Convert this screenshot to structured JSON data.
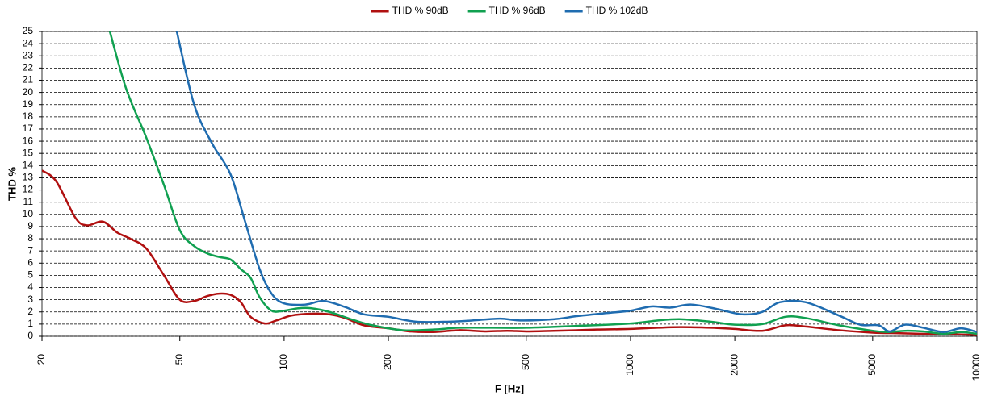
{
  "chart_data": {
    "type": "line",
    "x_label": "F [Hz]",
    "y_label": "THD %",
    "xlim": [
      20,
      10000
    ],
    "ylim": [
      0,
      25
    ],
    "log_x": true,
    "grid": true,
    "legend": "top",
    "xticks": [
      20,
      50,
      100,
      200,
      500,
      1000,
      2000,
      5000,
      10000
    ],
    "yticks": [
      0,
      1,
      2,
      3,
      4,
      5,
      6,
      7,
      8,
      9,
      10,
      11,
      12,
      13,
      14,
      15,
      16,
      17,
      18,
      19,
      20,
      21,
      22,
      23,
      24,
      25
    ],
    "series": [
      {
        "name": "THD % 90dB",
        "color": "#b01010",
        "x": [
          20,
          22,
          25,
          27,
          30,
          33,
          36,
          40,
          45,
          50,
          55,
          60,
          65,
          70,
          75,
          80,
          88,
          95,
          105,
          120,
          135,
          150,
          170,
          200,
          230,
          270,
          320,
          380,
          440,
          500,
          600,
          700,
          800,
          1000,
          1200,
          1400,
          1700,
          2000,
          2400,
          2800,
          3200,
          4000,
          5000,
          6000,
          7000,
          8000,
          9000,
          10000
        ],
        "values": [
          13.6,
          12.7,
          9.7,
          9.1,
          9.4,
          8.5,
          8.0,
          7.2,
          5.0,
          3.0,
          2.9,
          3.3,
          3.5,
          3.4,
          2.8,
          1.6,
          1.05,
          1.3,
          1.7,
          1.85,
          1.8,
          1.5,
          0.9,
          0.65,
          0.4,
          0.35,
          0.5,
          0.4,
          0.45,
          0.4,
          0.45,
          0.5,
          0.55,
          0.6,
          0.7,
          0.75,
          0.7,
          0.6,
          0.45,
          0.9,
          0.8,
          0.5,
          0.3,
          0.25,
          0.2,
          0.15,
          0.15,
          0.1
        ]
      },
      {
        "name": "THD % 96dB",
        "color": "#10a050",
        "x": [
          31.4,
          35,
          40,
          45,
          50,
          55,
          60,
          65,
          70,
          75,
          80,
          85,
          92,
          100,
          110,
          120,
          135,
          160,
          180,
          220,
          270,
          320,
          400,
          500,
          700,
          1000,
          1200,
          1400,
          1700,
          2000,
          2400,
          2800,
          3200,
          4000,
          5000,
          5500,
          6200,
          7000,
          8000,
          9000,
          10000
        ],
        "values": [
          25,
          20.3,
          16.3,
          12.4,
          8.7,
          7.4,
          6.8,
          6.5,
          6.3,
          5.5,
          4.8,
          3.2,
          2.1,
          2.1,
          2.3,
          2.3,
          2.0,
          1.3,
          0.9,
          0.5,
          0.55,
          0.7,
          0.7,
          0.7,
          0.85,
          1.05,
          1.3,
          1.4,
          1.2,
          0.95,
          1.0,
          1.6,
          1.5,
          0.9,
          0.45,
          0.35,
          0.45,
          0.4,
          0.2,
          0.35,
          0.2
        ]
      },
      {
        "name": "THD % 102dB",
        "color": "#1f6cb0",
        "x": [
          49,
          55,
          62,
          70,
          77,
          85,
          92,
          100,
          115,
          130,
          150,
          170,
          200,
          240,
          300,
          350,
          420,
          480,
          600,
          700,
          850,
          1000,
          1150,
          1300,
          1500,
          1800,
          2100,
          2400,
          2700,
          3200,
          4000,
          4600,
          5200,
          5600,
          6200,
          7000,
          8000,
          9000,
          10000
        ],
        "values": [
          25,
          19,
          15.8,
          13.3,
          9.5,
          5.5,
          3.5,
          2.7,
          2.6,
          2.9,
          2.4,
          1.8,
          1.6,
          1.2,
          1.2,
          1.3,
          1.45,
          1.3,
          1.4,
          1.65,
          1.9,
          2.1,
          2.45,
          2.35,
          2.6,
          2.2,
          1.8,
          2.0,
          2.8,
          2.8,
          1.7,
          0.95,
          0.9,
          0.4,
          0.95,
          0.7,
          0.35,
          0.65,
          0.35
        ]
      }
    ]
  }
}
